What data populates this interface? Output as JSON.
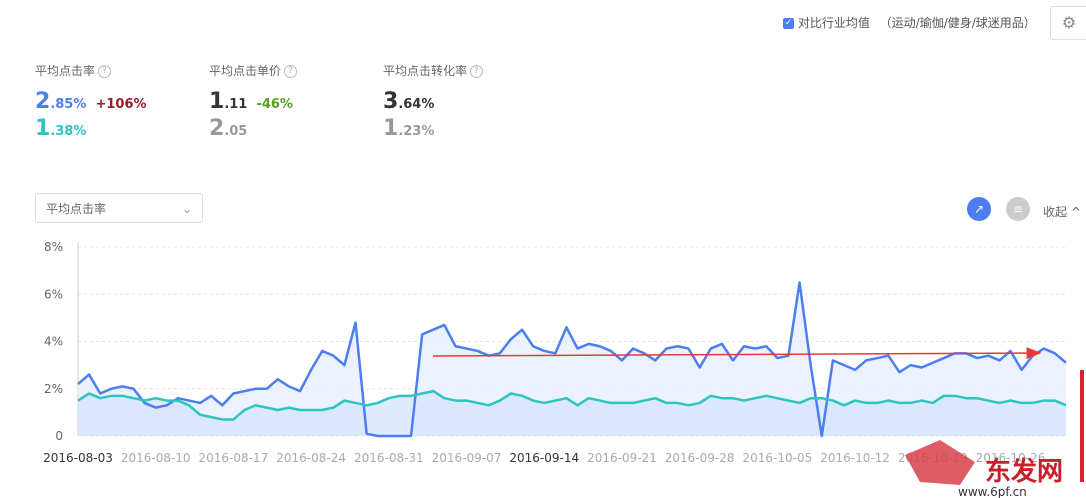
{
  "header": {
    "compare_label": "对比行业均值",
    "industry": "（运动/瑜伽/健身/球迷用品）"
  },
  "metrics": [
    {
      "label": "平均点击率",
      "store": {
        "int": "2",
        "frac": ".85%"
      },
      "change": "+106%",
      "industry": {
        "int": "1",
        "frac": ".38%"
      }
    },
    {
      "label": "平均点击单价",
      "store": {
        "int": "1",
        "frac": ".11"
      },
      "change": "-46%",
      "industry": {
        "int": "2",
        "frac": ".05"
      }
    },
    {
      "label": "平均点击转化率",
      "store": {
        "int": "3",
        "frac": ".64%"
      },
      "industry": {
        "int": "1",
        "frac": ".23%"
      }
    }
  ],
  "dropdown": "平均点击率",
  "collapse": "收起",
  "watermark": {
    "brand": "东发网",
    "url": "www.6pf.cn"
  },
  "chart_data": {
    "type": "line",
    "categories": [
      "2016-08-03",
      null,
      null,
      null,
      null,
      null,
      null,
      "2016-08-10",
      null,
      null,
      null,
      null,
      null,
      null,
      "2016-08-17",
      null,
      null,
      null,
      null,
      null,
      null,
      "2016-08-24",
      null,
      null,
      null,
      null,
      null,
      null,
      "2016-08-31",
      null,
      null,
      null,
      null,
      null,
      null,
      "2016-09-07",
      null,
      null,
      null,
      null,
      null,
      null,
      "2016-09-14",
      null,
      null,
      null,
      null,
      null,
      null,
      "2016-09-21",
      null,
      null,
      null,
      null,
      null,
      null,
      "2016-09-28",
      null,
      null,
      null,
      null,
      null,
      null,
      "2016-10-05",
      null,
      null,
      null,
      null,
      null,
      null,
      "2016-10-12",
      null,
      null,
      null,
      null,
      null,
      null,
      "2016-10-19",
      null,
      null,
      null,
      null,
      null,
      null,
      "2016-10-26",
      null,
      null,
      null,
      null,
      null
    ],
    "series": [
      {
        "color": "#4d7ef0",
        "fill": "#e6edfc",
        "values": [
          2.2,
          2.6,
          1.8,
          2.0,
          2.1,
          2.0,
          1.4,
          1.2,
          1.3,
          1.6,
          1.5,
          1.4,
          1.7,
          1.3,
          1.8,
          1.9,
          2.0,
          2.0,
          2.4,
          2.1,
          1.9,
          2.8,
          3.6,
          3.4,
          3.0,
          4.8,
          0.1,
          0,
          0,
          0,
          0,
          4.3,
          4.5,
          4.7,
          3.8,
          3.7,
          3.6,
          3.4,
          3.5,
          4.1,
          4.5,
          3.8,
          3.6,
          3.5,
          4.6,
          3.7,
          3.9,
          3.8,
          3.6,
          3.2,
          3.7,
          3.5,
          3.2,
          3.7,
          3.8,
          3.7,
          2.9,
          3.7,
          3.9,
          3.2,
          3.8,
          3.7,
          3.8,
          3.3,
          3.4,
          6.5,
          3.0,
          0,
          3.2,
          3.0,
          2.8,
          3.2,
          3.3,
          3.4,
          2.7,
          3.0,
          2.9,
          3.1,
          3.3,
          3.5,
          3.5,
          3.3,
          3.4,
          3.2,
          3.6,
          2.8,
          3.4,
          3.7,
          3.5,
          3.1
        ]
      },
      {
        "color": "#2ec4c0",
        "fill": "#d4e3fb",
        "values": [
          1.5,
          1.8,
          1.6,
          1.7,
          1.7,
          1.6,
          1.5,
          1.6,
          1.5,
          1.5,
          1.3,
          0.9,
          0.8,
          0.7,
          0.7,
          1.1,
          1.3,
          1.2,
          1.1,
          1.2,
          1.1,
          1.1,
          1.1,
          1.2,
          1.5,
          1.4,
          1.3,
          1.4,
          1.6,
          1.7,
          1.7,
          1.8,
          1.9,
          1.6,
          1.5,
          1.5,
          1.4,
          1.3,
          1.5,
          1.8,
          1.7,
          1.5,
          1.4,
          1.5,
          1.6,
          1.3,
          1.6,
          1.5,
          1.4,
          1.4,
          1.4,
          1.5,
          1.6,
          1.4,
          1.4,
          1.3,
          1.4,
          1.7,
          1.6,
          1.6,
          1.5,
          1.6,
          1.7,
          1.6,
          1.5,
          1.4,
          1.6,
          1.6,
          1.5,
          1.3,
          1.5,
          1.4,
          1.4,
          1.5,
          1.4,
          1.4,
          1.5,
          1.4,
          1.7,
          1.7,
          1.6,
          1.6,
          1.5,
          1.4,
          1.5,
          1.4,
          1.4,
          1.5,
          1.5,
          1.3
        ]
      }
    ],
    "ylim": [
      0,
      8
    ],
    "yticks": [
      0,
      {
        "value": 2,
        "label": "2%"
      },
      {
        "value": 4,
        "label": "4%"
      },
      {
        "value": 6,
        "label": "6%"
      },
      {
        "value": 8,
        "label": "8%"
      }
    ],
    "grid": true
  }
}
